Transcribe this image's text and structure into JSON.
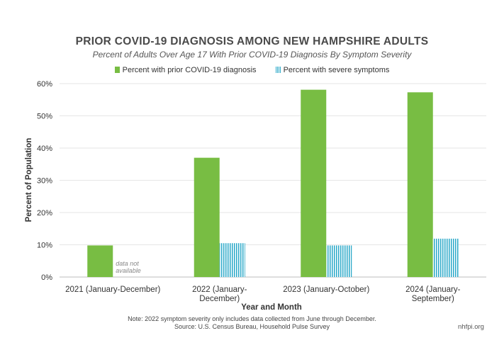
{
  "chart_data": {
    "type": "bar",
    "title": "PRIOR COVID-19 DIAGNOSIS AMONG NEW HAMPSHIRE ADULTS",
    "subtitle": "Percent of Adults Over Age 17 With Prior COVID-19 Diagnosis By Symptom Severity",
    "xlabel": "Year and Month",
    "ylabel": "Percent of Population",
    "ylim": [
      0,
      60
    ],
    "yticks": [
      "0%",
      "10%",
      "20%",
      "30%",
      "40%",
      "50%",
      "60%"
    ],
    "categories": [
      [
        "2021 (January-December)"
      ],
      [
        "2022 (January-",
        "December)"
      ],
      [
        "2023 (January-October)"
      ],
      [
        "2024 (January-",
        "September)"
      ]
    ],
    "series": [
      {
        "name": "Percent with prior COVID-19 diagnosis",
        "color": "#78bd43",
        "values": [
          9.8,
          37.0,
          58.1,
          57.3
        ]
      },
      {
        "name": "Percent with severe symptoms",
        "color": "#2aa8c8",
        "values": [
          null,
          10.5,
          9.8,
          11.9
        ]
      }
    ],
    "annotation": [
      "data not",
      "available"
    ]
  },
  "note": "Note: 2022 symptom severity only includes data collected from June through December.",
  "source": "Source: U.S. Census Bureau, Household Pulse Survey",
  "site": "nhfpi.org"
}
